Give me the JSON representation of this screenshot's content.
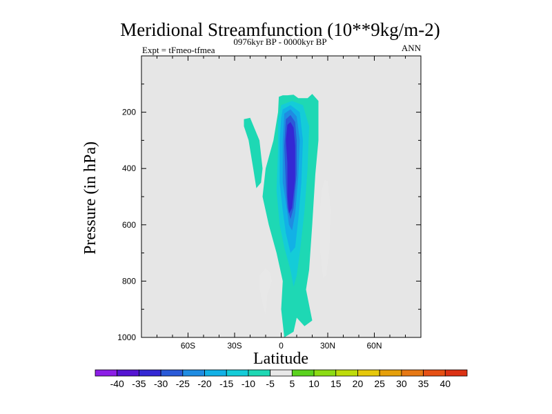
{
  "chart_data": {
    "type": "contour",
    "title": "Meridional Streamfunction (10**9kg/m-2)",
    "subtitle_left": "Expt = tFmeo-tfmea",
    "subtitle_center": "0976kyr BP - 0000kyr BP",
    "subtitle_right": "ANN",
    "xlabel": "Latitude",
    "ylabel": "Pressure (in hPa)",
    "xlim": [
      -90,
      90
    ],
    "ylim": [
      1000,
      0
    ],
    "x_ticks": [
      {
        "value": -60,
        "label": "60S"
      },
      {
        "value": -30,
        "label": "30S"
      },
      {
        "value": 0,
        "label": "0"
      },
      {
        "value": 30,
        "label": "30N"
      },
      {
        "value": 60,
        "label": "60N"
      }
    ],
    "y_ticks": [
      {
        "value": 200,
        "label": "200"
      },
      {
        "value": 400,
        "label": "400"
      },
      {
        "value": 600,
        "label": "600"
      },
      {
        "value": 800,
        "label": "800"
      },
      {
        "value": 1000,
        "label": "1000"
      }
    ],
    "background_color": "#e6e6e6",
    "colorbar": {
      "levels": [
        "-40",
        "-35",
        "-30",
        "-25",
        "-20",
        "-15",
        "-10",
        "-5",
        "5",
        "10",
        "15",
        "20",
        "25",
        "30",
        "35",
        "40"
      ],
      "colors": [
        "#8c1ee6",
        "#5514d2",
        "#3428d4",
        "#2a5ad8",
        "#1f8ce2",
        "#12b1e6",
        "#14ccd8",
        "#1ed8b4",
        "#e8e8e8",
        "#5ad21e",
        "#8cdc14",
        "#bedc0a",
        "#e6c80a",
        "#e6a00a",
        "#e67814",
        "#e65014",
        "#dc3214"
      ]
    },
    "regions": [
      {
        "name": "neg-5-main",
        "value": -5,
        "points": [
          [
            -1.5,
            145
          ],
          [
            1,
            140
          ],
          [
            4,
            140
          ],
          [
            8,
            138
          ],
          [
            11,
            150
          ],
          [
            17,
            150
          ],
          [
            20,
            135
          ],
          [
            24,
            160
          ],
          [
            24,
            300
          ],
          [
            22,
            420
          ],
          [
            20,
            600
          ],
          [
            18,
            760
          ],
          [
            16,
            830
          ],
          [
            20,
            940
          ],
          [
            15,
            960
          ],
          [
            10,
            930
          ],
          [
            8,
            980
          ],
          [
            2,
            1000
          ],
          [
            0,
            900
          ],
          [
            1,
            800
          ],
          [
            -3,
            700
          ],
          [
            -8,
            600
          ],
          [
            -12,
            500
          ],
          [
            -10,
            400
          ],
          [
            -5,
            300
          ],
          [
            -2,
            200
          ]
        ]
      },
      {
        "name": "neg-5-left",
        "value": -5,
        "points": [
          [
            -24,
            225
          ],
          [
            -20,
            220
          ],
          [
            -14,
            300
          ],
          [
            -12,
            400
          ],
          [
            -13,
            450
          ],
          [
            -16,
            470
          ],
          [
            -18,
            400
          ],
          [
            -21,
            300
          ],
          [
            -24,
            250
          ]
        ]
      },
      {
        "name": "neg-10",
        "value": -10,
        "points": [
          [
            0,
            175
          ],
          [
            7,
            160
          ],
          [
            14,
            175
          ],
          [
            18,
            250
          ],
          [
            17,
            400
          ],
          [
            15,
            550
          ],
          [
            12,
            700
          ],
          [
            10,
            780
          ],
          [
            8,
            820
          ],
          [
            6,
            760
          ],
          [
            2,
            680
          ],
          [
            -1,
            600
          ],
          [
            -3,
            480
          ],
          [
            -2,
            330
          ],
          [
            -2,
            230
          ]
        ]
      },
      {
        "name": "neg-15",
        "value": -15,
        "points": [
          [
            1,
            190
          ],
          [
            6,
            175
          ],
          [
            12,
            200
          ],
          [
            14,
            300
          ],
          [
            13,
            450
          ],
          [
            11,
            580
          ],
          [
            9,
            680
          ],
          [
            6,
            700
          ],
          [
            3,
            630
          ],
          [
            1,
            550
          ],
          [
            -1,
            450
          ],
          [
            -1,
            300
          ],
          [
            0,
            220
          ]
        ]
      },
      {
        "name": "neg-20",
        "value": -20,
        "points": [
          [
            2,
            205
          ],
          [
            6,
            190
          ],
          [
            10,
            215
          ],
          [
            12,
            300
          ],
          [
            11,
            430
          ],
          [
            9,
            560
          ],
          [
            7,
            620
          ],
          [
            5,
            600
          ],
          [
            3,
            520
          ],
          [
            1,
            450
          ],
          [
            1,
            300
          ]
        ]
      },
      {
        "name": "neg-25",
        "value": -25,
        "points": [
          [
            3,
            225
          ],
          [
            6,
            210
          ],
          [
            9,
            235
          ],
          [
            10,
            300
          ],
          [
            10,
            420
          ],
          [
            8,
            540
          ],
          [
            6,
            580
          ],
          [
            4,
            540
          ],
          [
            3,
            460
          ],
          [
            2,
            320
          ]
        ]
      },
      {
        "name": "neg-30",
        "value": -30,
        "points": [
          [
            4,
            245
          ],
          [
            6,
            235
          ],
          [
            8,
            255
          ],
          [
            9,
            320
          ],
          [
            9,
            440
          ],
          [
            7,
            540
          ],
          [
            5,
            560
          ],
          [
            4,
            500
          ],
          [
            4,
            380
          ],
          [
            3,
            300
          ]
        ]
      },
      {
        "name": "pos-5-right",
        "value": 5,
        "points": [
          [
            28,
            440
          ],
          [
            30,
            445
          ],
          [
            32,
            550
          ],
          [
            31,
            690
          ],
          [
            29,
            780
          ],
          [
            27,
            790
          ],
          [
            25,
            690
          ],
          [
            25,
            550
          ],
          [
            26,
            480
          ]
        ]
      },
      {
        "name": "pos-5-left",
        "value": 5,
        "points": [
          [
            -10,
            755
          ],
          [
            -7,
            770
          ],
          [
            -6,
            800
          ],
          [
            -9,
            850
          ],
          [
            -10,
            920
          ],
          [
            -12,
            880
          ],
          [
            -14,
            820
          ],
          [
            -14,
            780
          ]
        ]
      }
    ]
  }
}
